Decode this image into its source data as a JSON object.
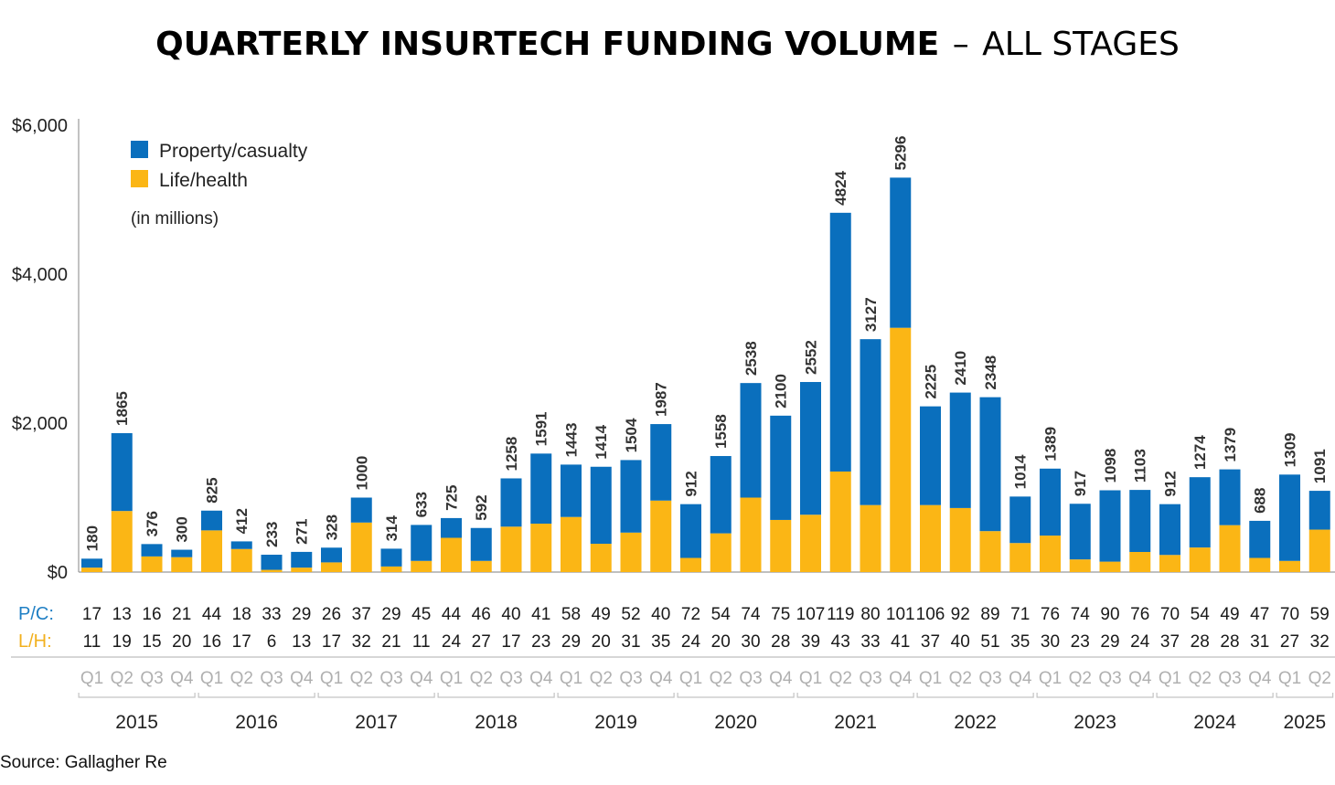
{
  "title": {
    "bold": "QUARTERLY INSURTECH FUNDING VOLUME",
    "dash": "–",
    "regular": "ALL STAGES"
  },
  "source": "Source: Gallagher Re",
  "units_note": "(in millions)",
  "row_labels": {
    "pc": "P/C:",
    "lh": "L/H:"
  },
  "colors": {
    "pc": "#0a6fbd",
    "lh": "#fbb615",
    "pc_label": "#1f7fc4",
    "lh_label": "#f2b01e"
  },
  "chart_data": {
    "type": "bar",
    "stacked": true,
    "ylim": [
      0,
      6000
    ],
    "yticks": [
      0,
      2000,
      4000,
      6000
    ],
    "ytick_labels": [
      "$0",
      "$2,000",
      "$4,000",
      "$6,000"
    ],
    "legend": {
      "position": "top-left",
      "entries": [
        "Property/casualty",
        "Life/health"
      ]
    },
    "years": [
      "2015",
      "2016",
      "2017",
      "2018",
      "2019",
      "2020",
      "2021",
      "2022",
      "2023",
      "2024",
      "2025"
    ],
    "quarters": [
      "Q1",
      "Q2",
      "Q3",
      "Q4",
      "Q1",
      "Q2",
      "Q3",
      "Q4",
      "Q1",
      "Q2",
      "Q3",
      "Q4",
      "Q1",
      "Q2",
      "Q3",
      "Q4",
      "Q1",
      "Q2",
      "Q3",
      "Q4",
      "Q1",
      "Q2",
      "Q3",
      "Q4",
      "Q1",
      "Q2",
      "Q3",
      "Q4",
      "Q1",
      "Q2",
      "Q3",
      "Q4",
      "Q1",
      "Q2",
      "Q3",
      "Q4",
      "Q1",
      "Q2",
      "Q3",
      "Q4",
      "Q1",
      "Q2"
    ],
    "totals": [
      180,
      1865,
      376,
      300,
      825,
      412,
      233,
      271,
      328,
      1000,
      314,
      633,
      725,
      592,
      1258,
      1591,
      1443,
      1414,
      1504,
      1987,
      912,
      1558,
      2538,
      2100,
      2552,
      4824,
      3127,
      5296,
      2225,
      2410,
      2348,
      1014,
      1389,
      917,
      1098,
      1103,
      912,
      1274,
      1379,
      688,
      1309,
      1091
    ],
    "series": [
      {
        "name": "Property/casualty",
        "values": [
          120,
          1045,
          166,
          100,
          265,
          102,
          203,
          211,
          198,
          335,
          239,
          483,
          265,
          442,
          648,
          941,
          703,
          1034,
          974,
          1027,
          722,
          1038,
          1538,
          1400,
          1782,
          3474,
          2227,
          2016,
          1325,
          1550,
          1798,
          624,
          899,
          747,
          958,
          833,
          682,
          944,
          749,
          498,
          1159,
          521
        ]
      },
      {
        "name": "Life/health",
        "values": [
          60,
          820,
          210,
          200,
          560,
          310,
          30,
          60,
          130,
          665,
          75,
          150,
          460,
          150,
          610,
          650,
          740,
          380,
          530,
          960,
          190,
          520,
          1000,
          700,
          770,
          1350,
          900,
          3280,
          900,
          860,
          550,
          390,
          490,
          170,
          140,
          270,
          230,
          330,
          630,
          190,
          150,
          570
        ]
      }
    ],
    "deal_counts": {
      "pc": [
        17,
        13,
        16,
        21,
        44,
        18,
        33,
        29,
        26,
        37,
        29,
        45,
        44,
        46,
        40,
        41,
        58,
        49,
        52,
        40,
        72,
        54,
        74,
        75,
        107,
        119,
        80,
        101,
        106,
        92,
        89,
        71,
        76,
        74,
        90,
        76,
        70,
        54,
        49,
        47,
        70,
        59
      ],
      "lh": [
        11,
        19,
        15,
        20,
        16,
        17,
        6,
        13,
        17,
        32,
        21,
        11,
        24,
        27,
        17,
        23,
        29,
        20,
        31,
        35,
        24,
        20,
        30,
        28,
        39,
        43,
        33,
        41,
        37,
        40,
        51,
        35,
        30,
        23,
        29,
        24,
        37,
        28,
        28,
        31,
        27,
        32
      ]
    }
  }
}
